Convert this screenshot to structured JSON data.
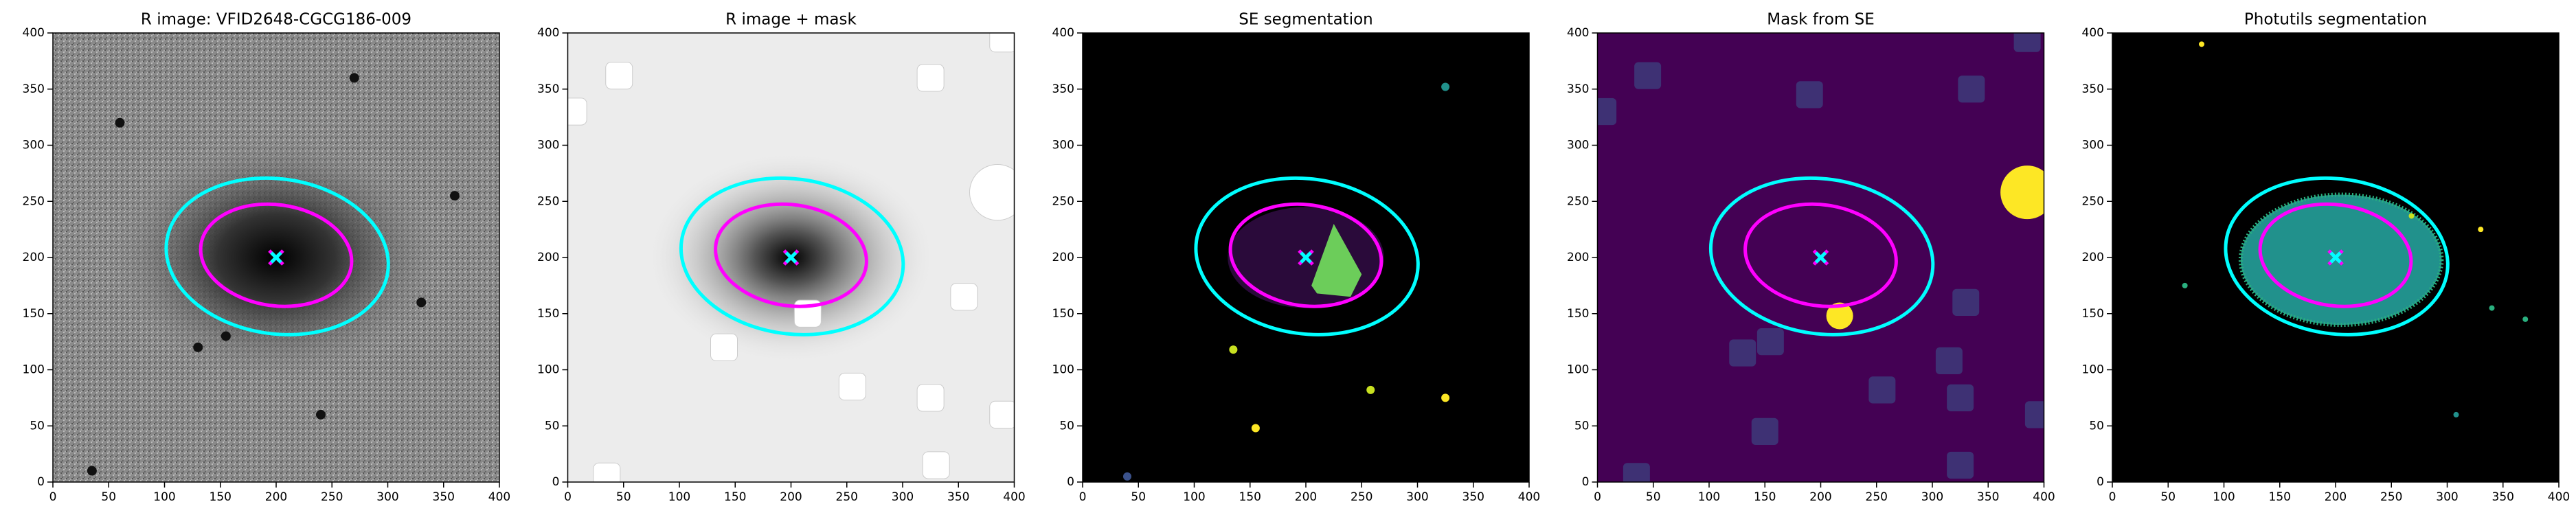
{
  "chart_data": [
    {
      "type": "image",
      "title": "R image: VFID2648-CGCG186-009",
      "background": "#8a8a8a",
      "xlim": [
        0,
        400
      ],
      "ylim": [
        0,
        400
      ],
      "xticks": [
        0,
        50,
        100,
        150,
        200,
        250,
        300,
        350,
        400
      ],
      "yticks": [
        0,
        50,
        100,
        150,
        200,
        250,
        300,
        350,
        400
      ],
      "ellipses": [
        {
          "color": "#00ffff",
          "cx": 201,
          "cy": 201,
          "rx": 100,
          "ry": 69,
          "angle": -8
        },
        {
          "color": "#ff00ff",
          "cx": 200,
          "cy": 202,
          "rx": 68,
          "ry": 45,
          "angle": -8
        }
      ],
      "markers": [
        {
          "color": "#ff00ff",
          "x": 200,
          "y": 200
        },
        {
          "color": "#00ffff",
          "x": 200,
          "y": 200
        }
      ]
    },
    {
      "type": "image",
      "title": "R image + mask",
      "background": "#ececec",
      "xlim": [
        0,
        400
      ],
      "ylim": [
        0,
        400
      ],
      "xticks": [
        0,
        50,
        100,
        150,
        200,
        250,
        300,
        350,
        400
      ],
      "yticks": [
        0,
        50,
        100,
        150,
        200,
        250,
        300,
        350,
        400
      ],
      "ellipses": [
        {
          "color": "#00ffff",
          "cx": 201,
          "cy": 201,
          "rx": 100,
          "ry": 69,
          "angle": -8
        },
        {
          "color": "#ff00ff",
          "cx": 200,
          "cy": 202,
          "rx": 68,
          "ry": 45,
          "angle": -8
        }
      ],
      "markers": [
        {
          "color": "#ff00ff",
          "x": 200,
          "y": 200
        },
        {
          "color": "#00ffff",
          "x": 200,
          "y": 200
        }
      ]
    },
    {
      "type": "image",
      "title": "SE segmentation",
      "background": "#000000",
      "xlim": [
        0,
        400
      ],
      "ylim": [
        0,
        400
      ],
      "xticks": [
        0,
        50,
        100,
        150,
        200,
        250,
        300,
        350,
        400
      ],
      "yticks": [
        0,
        50,
        100,
        150,
        200,
        250,
        300,
        350,
        400
      ],
      "ellipses": [
        {
          "color": "#00ffff",
          "cx": 201,
          "cy": 201,
          "rx": 100,
          "ry": 69,
          "angle": -8
        },
        {
          "color": "#ff00ff",
          "cx": 200,
          "cy": 202,
          "rx": 68,
          "ry": 45,
          "angle": -8
        }
      ],
      "markers": [
        {
          "color": "#ff00ff",
          "x": 200,
          "y": 200
        },
        {
          "color": "#00ffff",
          "x": 200,
          "y": 200
        }
      ]
    },
    {
      "type": "image",
      "title": "Mask from SE",
      "background": "#440154",
      "xlim": [
        0,
        400
      ],
      "ylim": [
        0,
        400
      ],
      "xticks": [
        0,
        50,
        100,
        150,
        200,
        250,
        300,
        350,
        400
      ],
      "yticks": [
        0,
        50,
        100,
        150,
        200,
        250,
        300,
        350,
        400
      ],
      "ellipses": [
        {
          "color": "#00ffff",
          "cx": 201,
          "cy": 201,
          "rx": 100,
          "ry": 69,
          "angle": -8
        },
        {
          "color": "#ff00ff",
          "cx": 200,
          "cy": 202,
          "rx": 68,
          "ry": 45,
          "angle": -8
        }
      ],
      "markers": [
        {
          "color": "#ff00ff",
          "x": 200,
          "y": 200
        },
        {
          "color": "#00ffff",
          "x": 200,
          "y": 200
        }
      ]
    },
    {
      "type": "image",
      "title": "Photutils segmentation",
      "background": "#000000",
      "xlim": [
        0,
        400
      ],
      "ylim": [
        0,
        400
      ],
      "xticks": [
        0,
        50,
        100,
        150,
        200,
        250,
        300,
        350,
        400
      ],
      "yticks": [
        0,
        50,
        100,
        150,
        200,
        250,
        300,
        350,
        400
      ],
      "ellipses": [
        {
          "color": "#00ffff",
          "cx": 201,
          "cy": 201,
          "rx": 100,
          "ry": 69,
          "angle": -8
        },
        {
          "color": "#ff00ff",
          "cx": 200,
          "cy": 202,
          "rx": 68,
          "ry": 45,
          "angle": -8
        }
      ],
      "markers": [
        {
          "color": "#ff00ff",
          "x": 200,
          "y": 200
        },
        {
          "color": "#00ffff",
          "x": 200,
          "y": 200
        }
      ]
    }
  ]
}
